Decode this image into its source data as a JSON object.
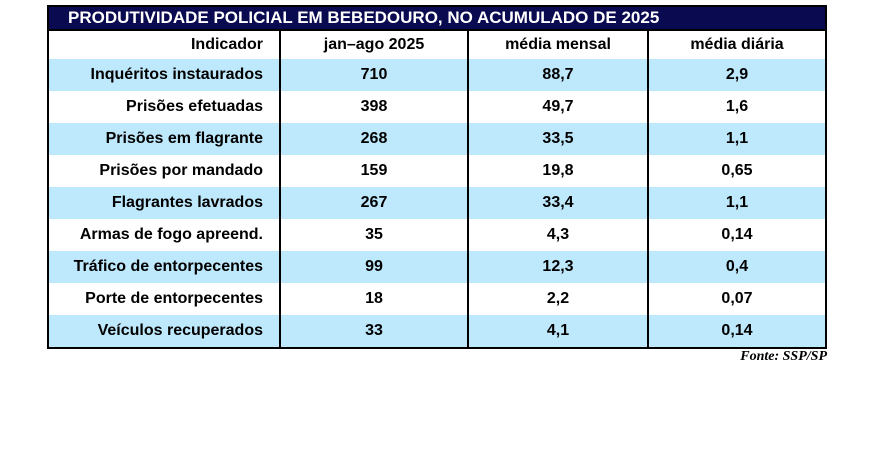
{
  "chart_data": {
    "type": "table",
    "title": "PRODUTIVIDADE POLICIAL EM BEBEDOURO, NO ACUMULADO DE 2025",
    "columns": [
      "Indicador",
      "jan–ago 2025",
      "média mensal",
      "média diária"
    ],
    "rows": [
      [
        "Inquéritos instaurados",
        "710",
        "88,7",
        "2,9"
      ],
      [
        "Prisões efetuadas",
        "398",
        "49,7",
        "1,6"
      ],
      [
        "Prisões em flagrante",
        "268",
        "33,5",
        "1,1"
      ],
      [
        "Prisões por mandado",
        "159",
        "19,8",
        "0,65"
      ],
      [
        "Flagrantes lavrados",
        "267",
        "33,4",
        "1,1"
      ],
      [
        "Armas de fogo apreend.",
        "35",
        "4,3",
        "0,14"
      ],
      [
        "Tráfico de entorpecentes",
        "99",
        "12,3",
        "0,4"
      ],
      [
        "Porte de entorpecentes",
        "18",
        "2,2",
        "0,07"
      ],
      [
        "Veículos recuperados",
        "33",
        "4,1",
        "0,14"
      ]
    ],
    "source": "Fonte: SSP/SP",
    "layout": {
      "stripe_pattern": "odd rows light blue, even rows white",
      "first_column_align": "right",
      "value_columns_align": "center",
      "grid": "vertical black separators only, no horizontal row lines"
    }
  },
  "colors": {
    "page_bg": "#ffffff",
    "title_bg": "#0a0a50",
    "title_text": "#ffffff",
    "border": "#000000",
    "stripe": "#bee8fb",
    "text": "#000000"
  }
}
